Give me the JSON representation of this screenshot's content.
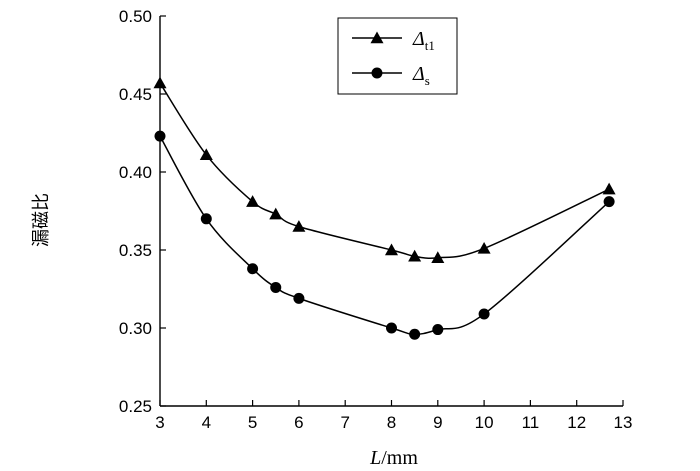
{
  "chart_data": {
    "type": "line",
    "title": "",
    "xlabel": {
      "var": "L",
      "unit": "/mm"
    },
    "ylabel": "漏磁比",
    "xlim": [
      3,
      13
    ],
    "ylim": [
      0.25,
      0.5
    ],
    "xticks": [
      "3",
      "4",
      "5",
      "6",
      "7",
      "8",
      "9",
      "10",
      "11",
      "12",
      "13"
    ],
    "yticks": [
      "0.25",
      "0.30",
      "0.35",
      "0.40",
      "0.45",
      "0.50"
    ],
    "grid": false,
    "legend_position": "top-center",
    "series": [
      {
        "name": "Δt1",
        "name_main": "Δ",
        "name_sub": "t1",
        "marker": "triangle",
        "x": [
          3,
          4,
          5,
          5.5,
          6,
          8,
          8.5,
          9,
          10,
          12.7
        ],
        "y": [
          0.457,
          0.411,
          0.381,
          0.373,
          0.365,
          0.35,
          0.346,
          0.345,
          0.351,
          0.389
        ]
      },
      {
        "name": "Δs",
        "name_main": "Δ",
        "name_sub": "s",
        "marker": "circle",
        "x": [
          3,
          4,
          5,
          5.5,
          6,
          8,
          8.5,
          9,
          10,
          12.7
        ],
        "y": [
          0.423,
          0.37,
          0.338,
          0.326,
          0.319,
          0.3,
          0.296,
          0.299,
          0.309,
          0.381
        ]
      }
    ]
  }
}
